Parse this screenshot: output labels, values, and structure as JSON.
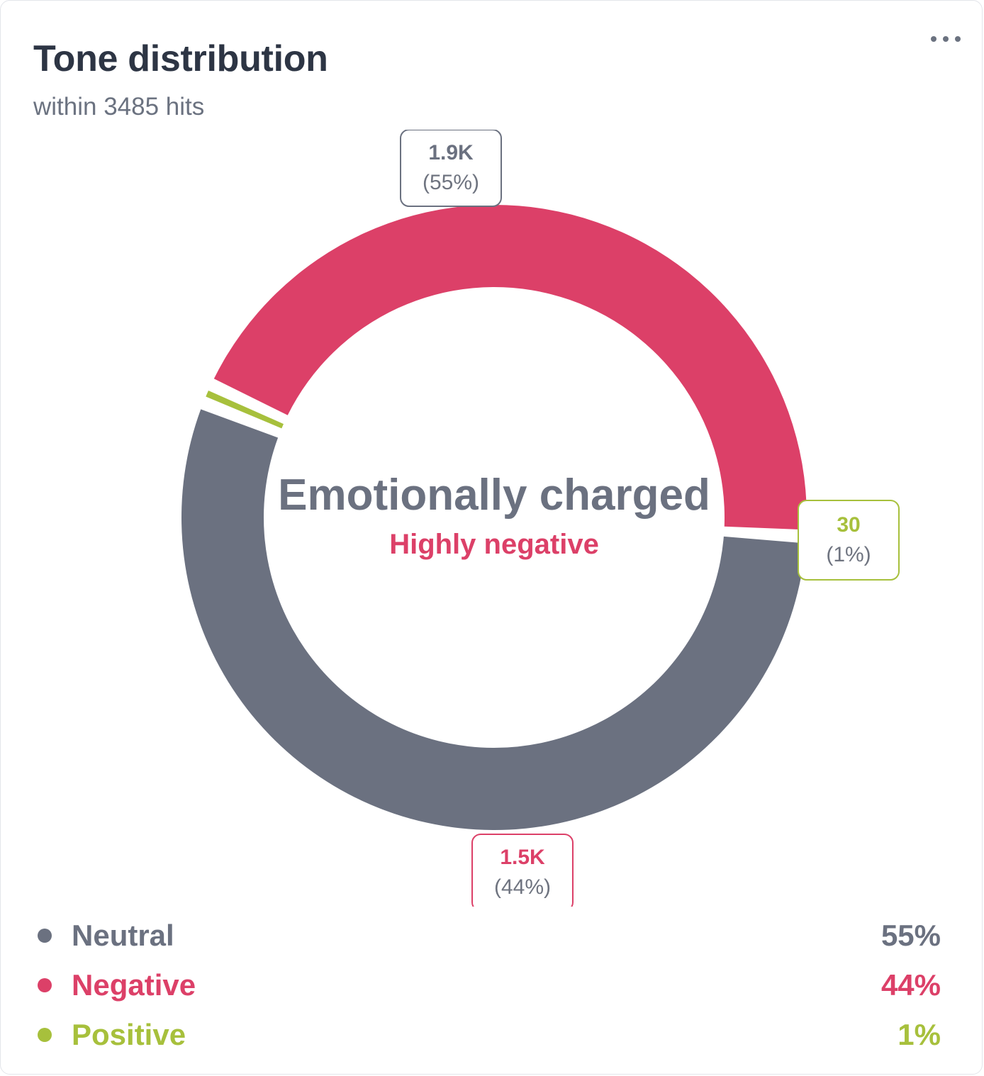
{
  "card": {
    "title": "Tone distribution",
    "subtitle": "within 3485 hits",
    "menu_icon": "more-horizontal-icon"
  },
  "chart_data": {
    "type": "pie",
    "total_hits": 3485,
    "center_title": "Emotionally charged",
    "center_subtitle": "Highly negative",
    "center_title_color": "#6b7180",
    "center_subtitle_color": "#dc4068",
    "slices": [
      {
        "name": "Neutral",
        "value": 1900,
        "percent": 55,
        "value_label": "1.9K",
        "percent_label": "(55%)",
        "color": "#6b7180"
      },
      {
        "name": "Positive",
        "value": 30,
        "percent": 1,
        "value_label": "30",
        "percent_label": "(1%)",
        "color": "#a7c03c"
      },
      {
        "name": "Negative",
        "value": 1500,
        "percent": 44,
        "value_label": "1.5K",
        "percent_label": "(44%)",
        "color": "#dc4068"
      }
    ]
  },
  "legend": {
    "items": [
      {
        "label": "Neutral",
        "value": "55%",
        "color": "#6b7180"
      },
      {
        "label": "Negative",
        "value": "44%",
        "color": "#dc4068"
      },
      {
        "label": "Positive",
        "value": "1%",
        "color": "#a7c03c"
      }
    ]
  },
  "colors": {
    "title": "#2d3544",
    "subtitle": "#6b7280",
    "label_percent": "#6f7480"
  }
}
